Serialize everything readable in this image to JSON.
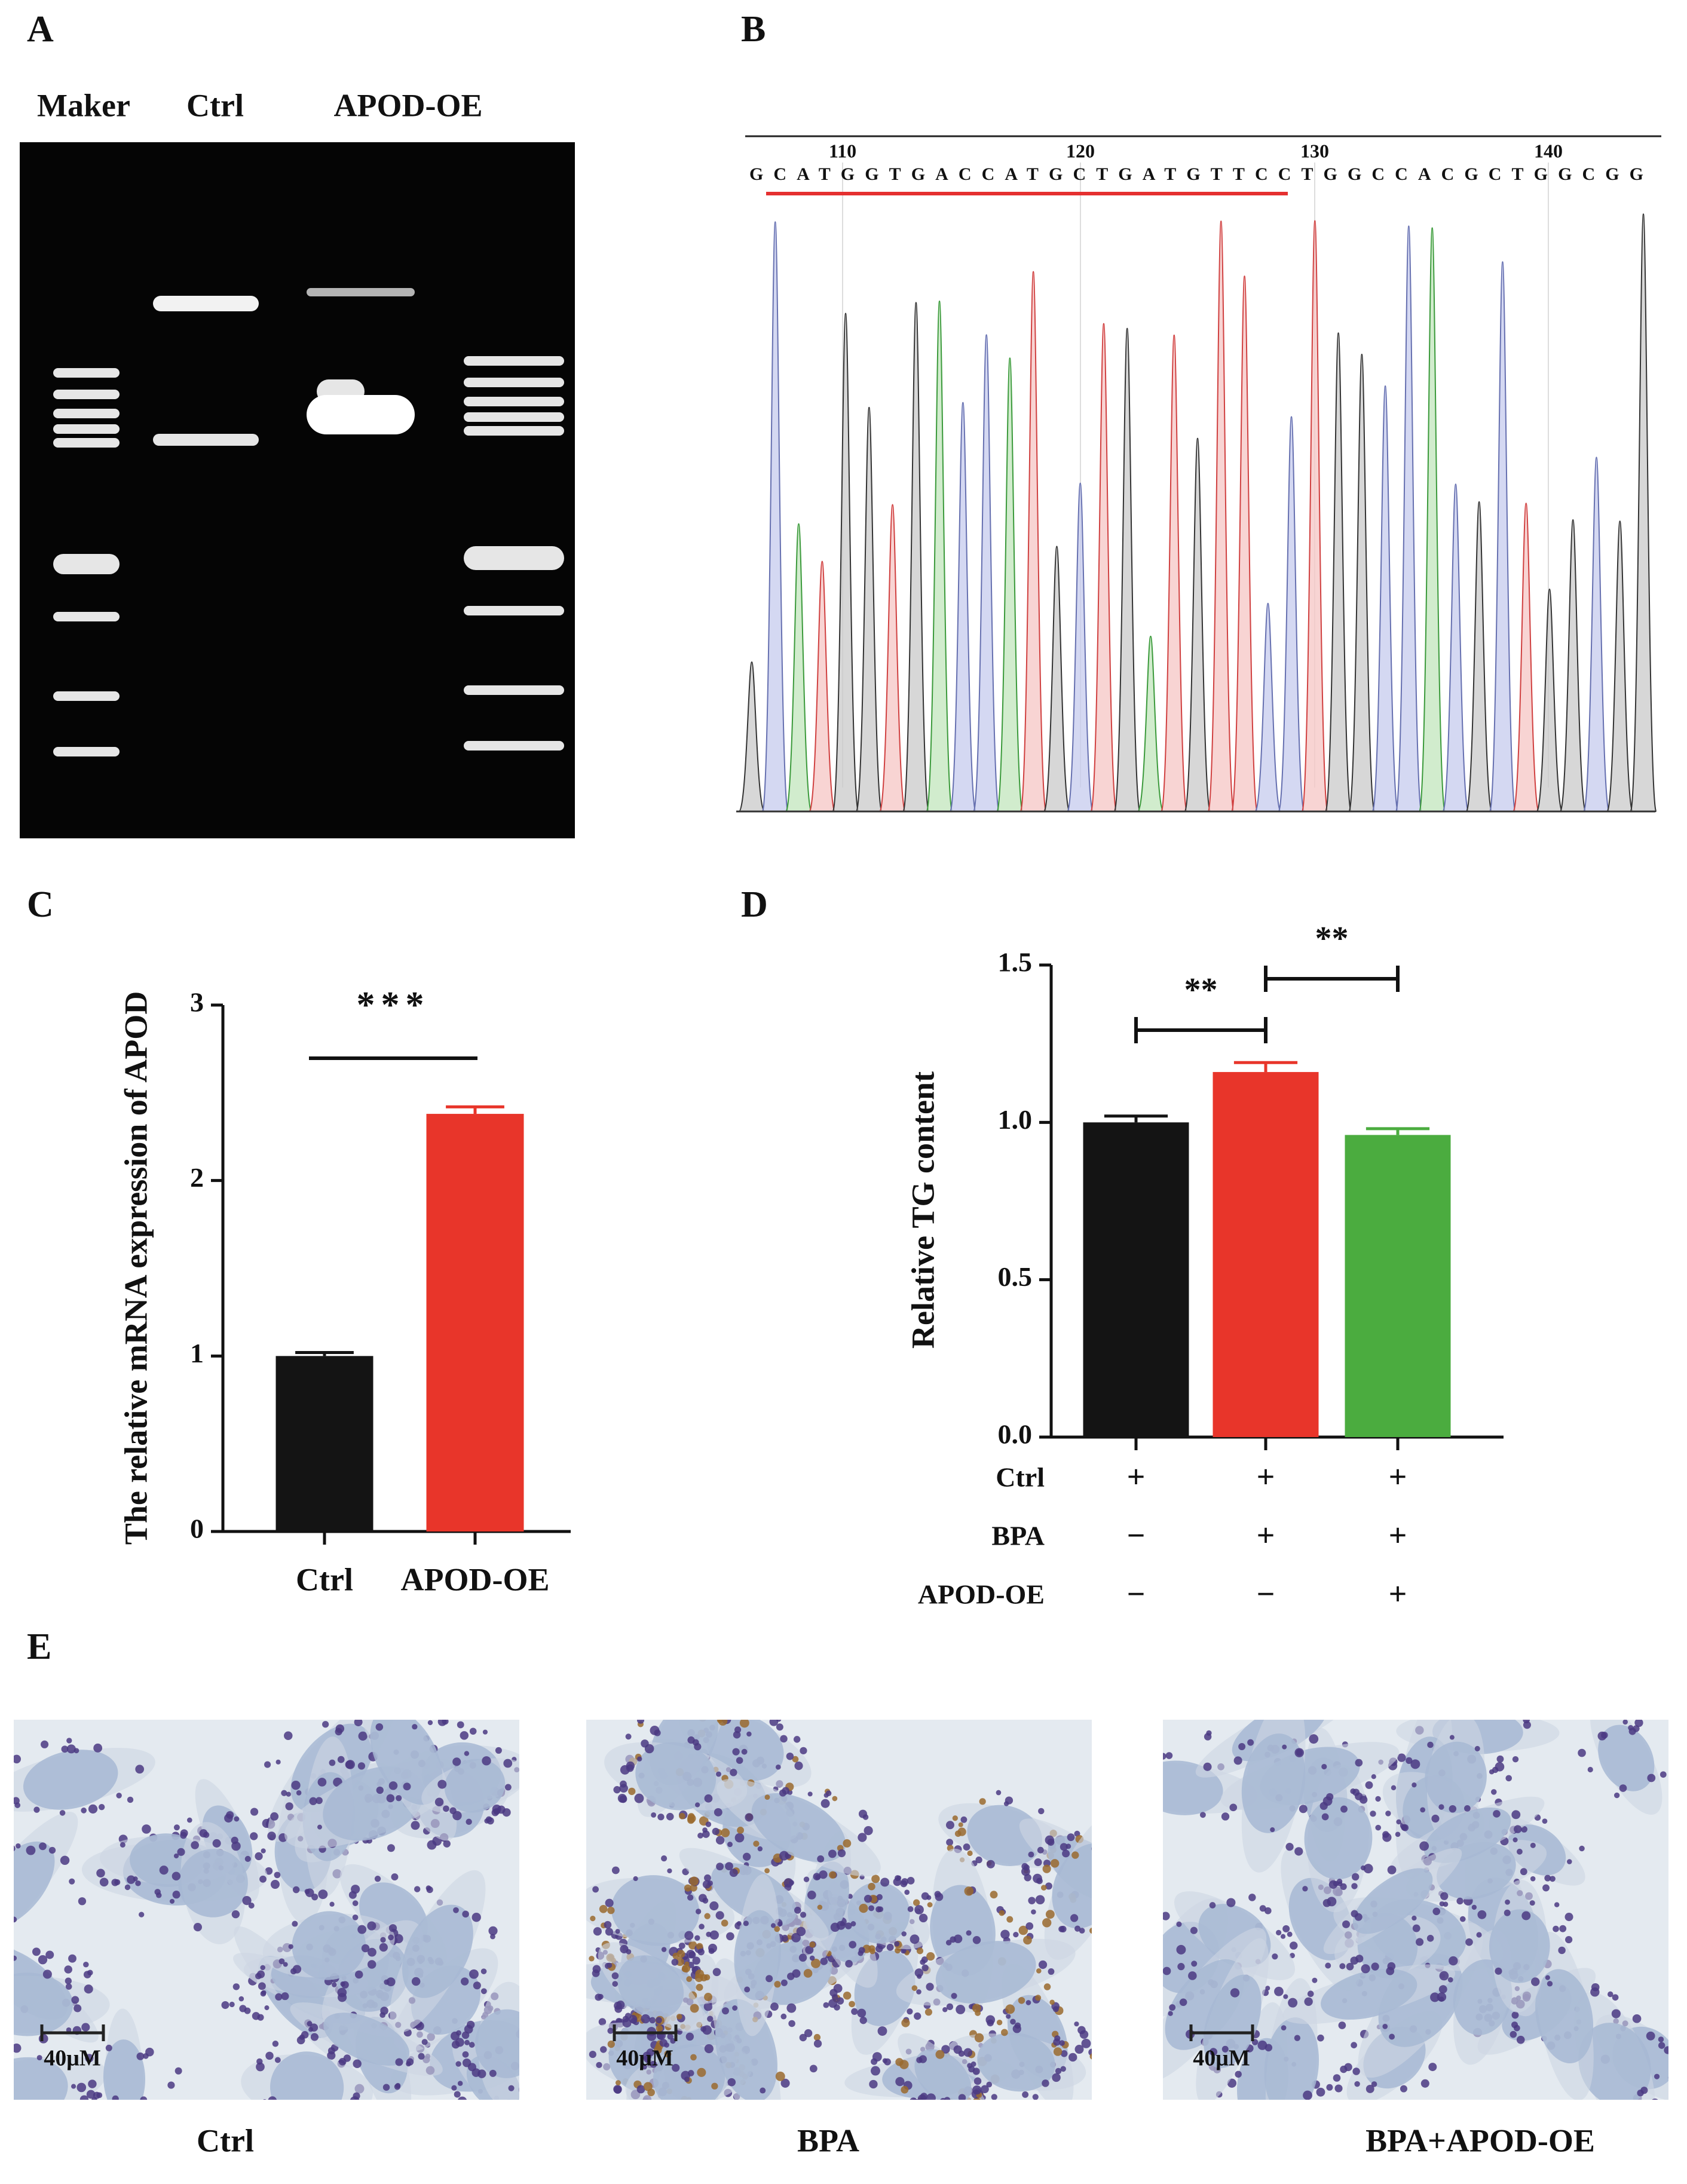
{
  "panel_labels": [
    "A",
    "B",
    "C",
    "D",
    "E"
  ],
  "gel": {
    "lanes": [
      "Maker",
      "Ctrl",
      "APOD-OE"
    ]
  },
  "sequencing": {
    "positions": [
      "110",
      "120",
      "130",
      "140"
    ],
    "sequence": "GCATGGTGACCATGCTGATGTTCCTGGCCACGCTGGCGG"
  },
  "chart_data": [
    {
      "type": "bar",
      "ylabel": "The relative mRNA expression of APOD",
      "categories": [
        "Ctrl",
        "APOD-OE"
      ],
      "values": [
        1.0,
        2.38
      ],
      "errors": [
        0.02,
        0.04
      ],
      "colors": [
        "#141414",
        "#e8352a"
      ],
      "ylim": [
        0,
        3
      ],
      "yticks": [
        0,
        1,
        2,
        3
      ],
      "significance": [
        "***"
      ]
    },
    {
      "type": "bar",
      "ylabel": "Relative TG content",
      "categories": [
        null,
        null,
        null
      ],
      "values": [
        1.0,
        1.16,
        0.96
      ],
      "errors": [
        0.02,
        0.03,
        0.02
      ],
      "colors": [
        "#141414",
        "#e8352a",
        "#4bac3f"
      ],
      "ylim": [
        0,
        1.5
      ],
      "yticks": [
        {
          "value": 0,
          "label": "0.0"
        },
        {
          "value": 0.5,
          "label": "0.5"
        },
        {
          "value": 1,
          "label": "1.0"
        },
        {
          "value": 1.5,
          "label": "1.5"
        }
      ],
      "significance": [
        "**",
        "**"
      ],
      "conditions": {
        "rows": [
          "Ctrl",
          "BPA",
          "APOD-OE"
        ],
        "signs": [
          [
            "+",
            "+",
            "+"
          ],
          [
            "−",
            "+",
            "+"
          ],
          [
            "−",
            "−",
            "+"
          ]
        ]
      }
    }
  ],
  "images": {
    "captions": [
      "Ctrl",
      "BPA",
      "BPA+APOD-OE"
    ],
    "scale_bar": "40μM"
  }
}
